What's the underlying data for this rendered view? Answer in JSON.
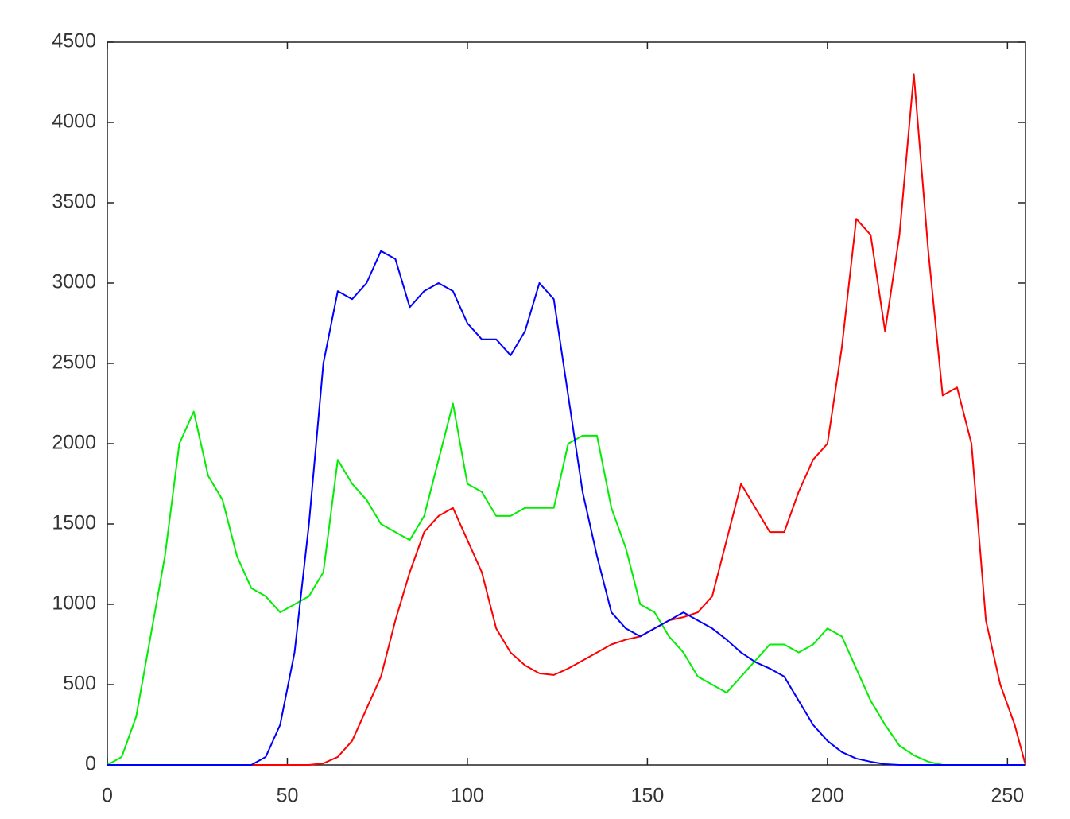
{
  "chart_data": {
    "type": "line",
    "x": [
      0,
      4,
      8,
      12,
      16,
      20,
      24,
      28,
      32,
      36,
      40,
      44,
      48,
      52,
      56,
      60,
      64,
      68,
      72,
      76,
      80,
      84,
      88,
      92,
      96,
      100,
      104,
      108,
      112,
      116,
      120,
      124,
      128,
      132,
      136,
      140,
      144,
      148,
      152,
      156,
      160,
      164,
      168,
      172,
      176,
      180,
      184,
      188,
      192,
      196,
      200,
      204,
      208,
      212,
      216,
      220,
      224,
      228,
      232,
      236,
      240,
      244,
      248,
      252,
      255
    ],
    "series": [
      {
        "color": "#ff0000",
        "values": [
          0,
          0,
          0,
          0,
          0,
          0,
          0,
          0,
          0,
          0,
          0,
          0,
          0,
          0,
          0,
          10,
          50,
          150,
          350,
          550,
          900,
          1200,
          1450,
          1550,
          1600,
          1400,
          1200,
          850,
          700,
          620,
          570,
          560,
          600,
          650,
          700,
          750,
          780,
          800,
          850,
          900,
          920,
          950,
          1050,
          1400,
          1750,
          1600,
          1450,
          1450,
          1700,
          1900,
          2000,
          2600,
          3400,
          3300,
          2700,
          3300,
          4300,
          3200,
          2300,
          2350,
          2000,
          900,
          500,
          250,
          0
        ]
      },
      {
        "color": "#00ee00",
        "values": [
          0,
          50,
          300,
          800,
          1300,
          2000,
          2200,
          1800,
          1650,
          1300,
          1100,
          1050,
          950,
          1000,
          1050,
          1200,
          1900,
          1750,
          1650,
          1500,
          1450,
          1400,
          1550,
          1900,
          2250,
          1750,
          1700,
          1550,
          1550,
          1600,
          1600,
          1600,
          2000,
          2050,
          2050,
          1600,
          1350,
          1000,
          950,
          800,
          700,
          550,
          500,
          450,
          550,
          650,
          750,
          750,
          700,
          750,
          850,
          800,
          600,
          400,
          250,
          120,
          60,
          20,
          0,
          0,
          0,
          0,
          0,
          0,
          0
        ]
      },
      {
        "color": "#0000ff",
        "values": [
          0,
          0,
          0,
          0,
          0,
          0,
          0,
          0,
          0,
          0,
          0,
          50,
          250,
          700,
          1500,
          2500,
          2950,
          2900,
          3000,
          3200,
          3150,
          2850,
          2950,
          3000,
          2950,
          2750,
          2650,
          2650,
          2550,
          2700,
          3000,
          2900,
          2300,
          1700,
          1300,
          950,
          850,
          800,
          850,
          900,
          950,
          900,
          850,
          780,
          700,
          640,
          600,
          550,
          400,
          250,
          150,
          80,
          40,
          20,
          5,
          0,
          0,
          0,
          0,
          0,
          0,
          0,
          0,
          0,
          0
        ]
      }
    ],
    "xlim": [
      0,
      255
    ],
    "xticks": [
      0,
      50,
      100,
      150,
      200,
      250
    ],
    "ylim": [
      0,
      4500
    ],
    "yticks": [
      0,
      500,
      1000,
      1500,
      2000,
      2500,
      3000,
      3500,
      4000,
      4500
    ]
  }
}
